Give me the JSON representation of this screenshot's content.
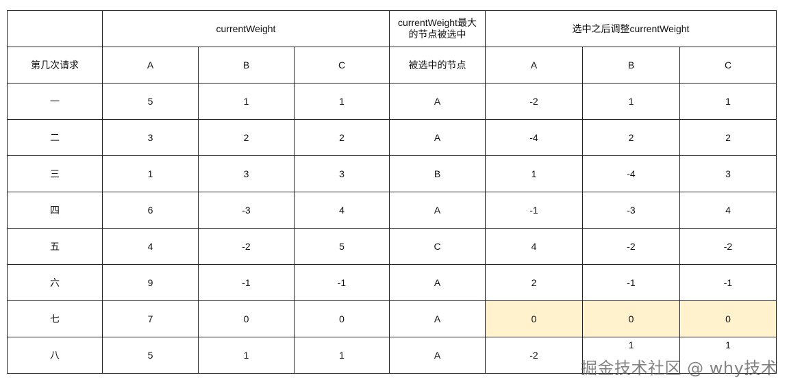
{
  "header": {
    "top": {
      "empty": "",
      "current_weight": "currentWeight",
      "max_selected": "currentWeight最大的节点被选中",
      "after_adjust": "选中之后调整currentWeight"
    },
    "sub": [
      "第几次请求",
      "A",
      "B",
      "C",
      "被选中的节点",
      "A",
      "B",
      "C"
    ]
  },
  "rows": [
    [
      "一",
      "5",
      "1",
      "1",
      "A",
      "-2",
      "1",
      "1"
    ],
    [
      "二",
      "3",
      "2",
      "2",
      "A",
      "-4",
      "2",
      "2"
    ],
    [
      "三",
      "1",
      "3",
      "3",
      "B",
      "1",
      "-4",
      "3"
    ],
    [
      "四",
      "6",
      "-3",
      "4",
      "A",
      "-1",
      "-3",
      "4"
    ],
    [
      "五",
      "4",
      "-2",
      "5",
      "C",
      "4",
      "-2",
      "-2"
    ],
    [
      "六",
      "9",
      "-1",
      "-1",
      "A",
      "2",
      "-1",
      "-1"
    ],
    [
      "七",
      "7",
      "0",
      "0",
      "A",
      "0",
      "0",
      "0"
    ],
    [
      "八",
      "5",
      "1",
      "1",
      "A",
      "-2",
      "1",
      "1"
    ]
  ],
  "highlight": {
    "row_label": "七",
    "color": "#fff2cc"
  },
  "watermark": "掘金技术社区 @ why技术"
}
